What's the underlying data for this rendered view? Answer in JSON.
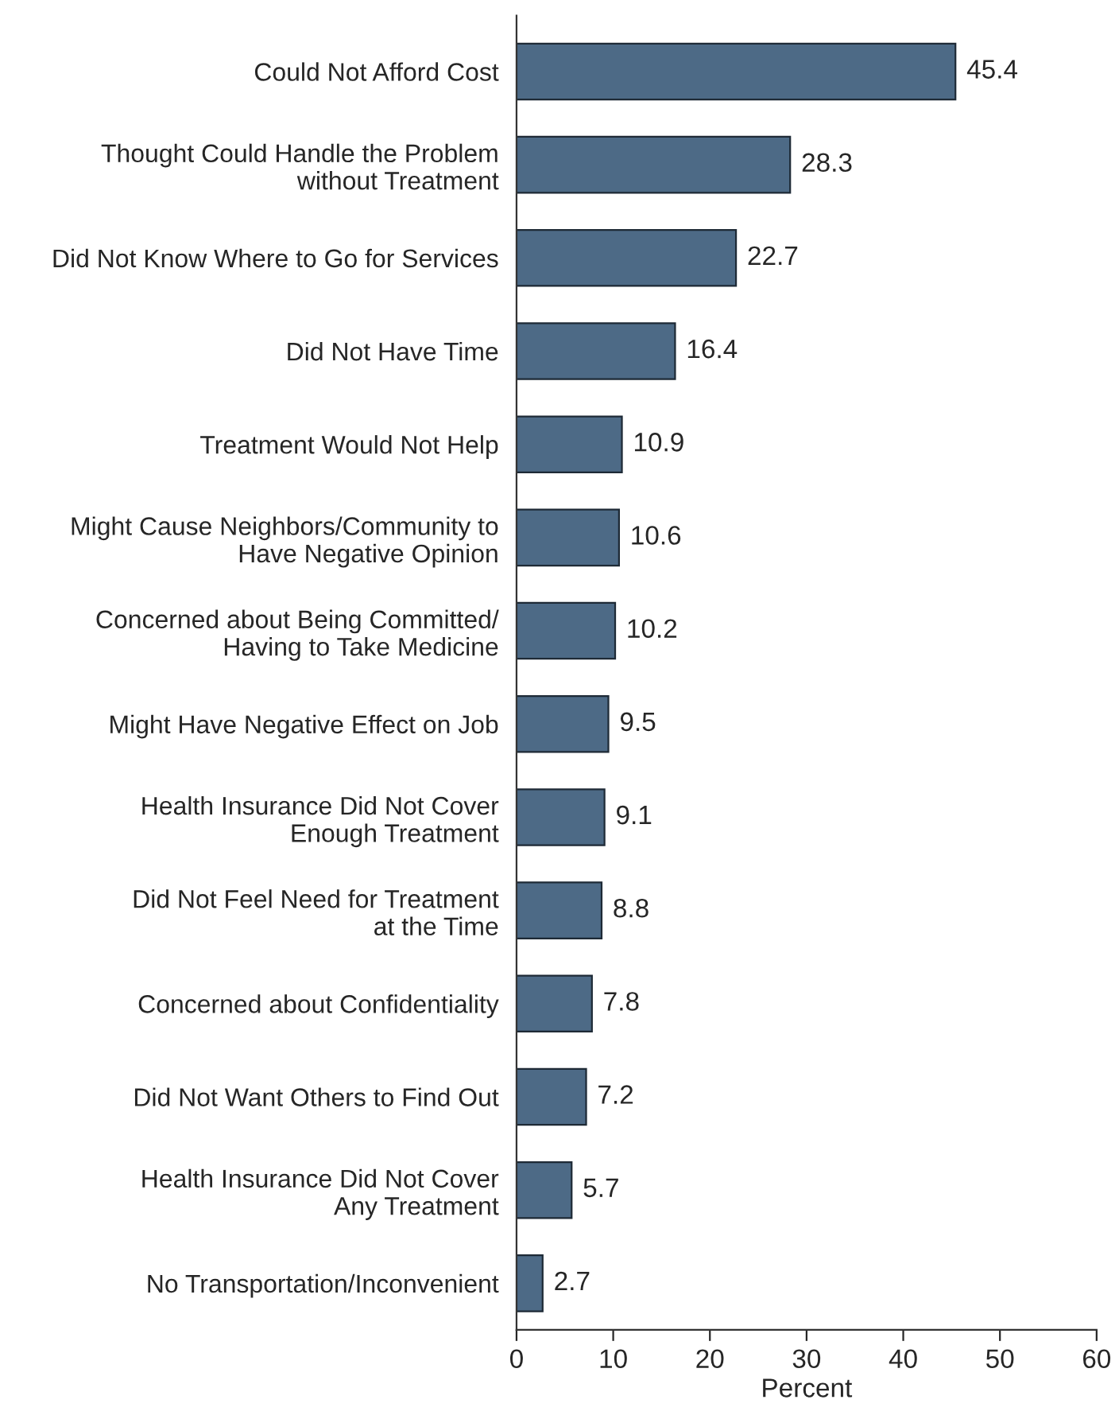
{
  "chart_data": {
    "type": "bar",
    "orientation": "horizontal",
    "xlabel": "Percent",
    "categories": [
      "Could Not Afford Cost",
      "Thought Could Handle the Problem\nwithout Treatment",
      "Did Not Know Where to Go for Services",
      "Did Not Have Time",
      "Treatment Would Not Help",
      "Might Cause Neighbors/Community to\nHave Negative Opinion",
      "Concerned about Being Committed/\nHaving to Take Medicine",
      "Might Have Negative Effect on Job",
      "Health Insurance Did Not Cover\nEnough Treatment",
      "Did Not Feel Need for Treatment\nat the Time",
      "Concerned about Confidentiality",
      "Did Not Want Others to Find Out",
      "Health Insurance Did Not Cover\nAny Treatment",
      "No Transportation/Inconvenient"
    ],
    "values": [
      45.4,
      28.3,
      22.7,
      16.4,
      10.9,
      10.6,
      10.2,
      9.5,
      9.1,
      8.8,
      7.8,
      7.2,
      5.7,
      2.7
    ],
    "color": "#4d6a86",
    "xlim": [
      0,
      60
    ],
    "xticks": [
      0,
      10,
      20,
      30,
      40,
      50,
      60
    ],
    "grid": false,
    "data_labels": true
  }
}
